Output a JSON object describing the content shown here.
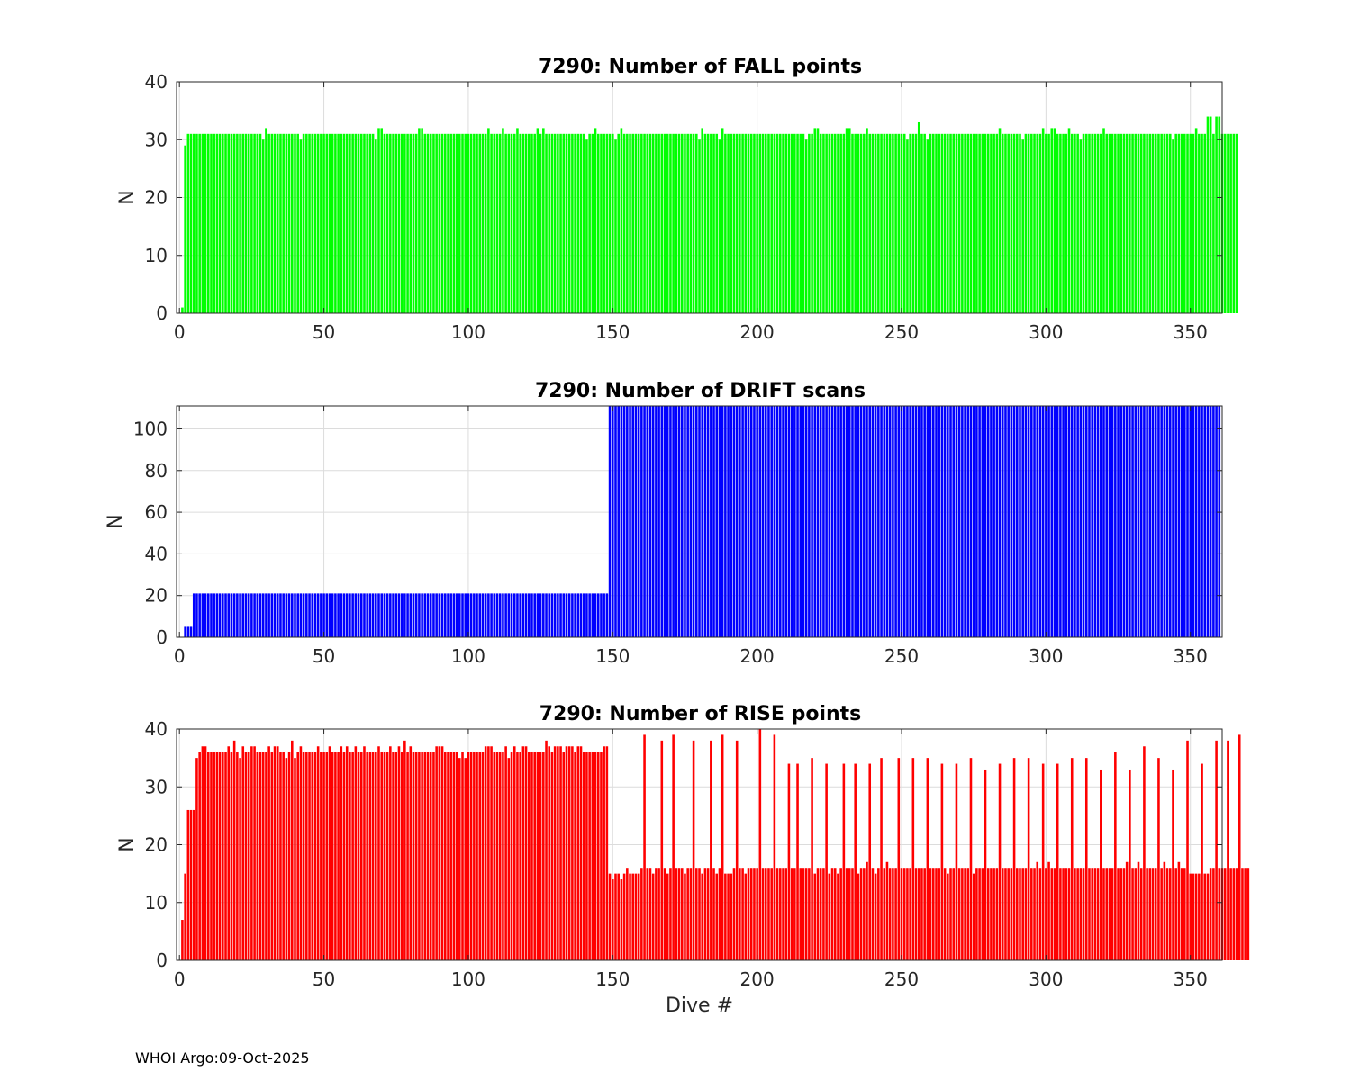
{
  "footer": "WHOI Argo:09-Oct-2025",
  "chart_data": [
    {
      "type": "bar",
      "title": "7290: Number of FALL points",
      "xlabel": "",
      "ylabel": "N",
      "xlim": [
        -1,
        361
      ],
      "ylim": [
        0,
        40
      ],
      "xticks": [
        0,
        50,
        100,
        150,
        200,
        250,
        300,
        350
      ],
      "yticks": [
        0,
        10,
        20,
        30,
        40
      ],
      "grid": true,
      "color": "#00ff00",
      "x_start": 1,
      "values": [
        1,
        29,
        31,
        31,
        31,
        31,
        31,
        31,
        31,
        31,
        31,
        31,
        31,
        31,
        31,
        31,
        31,
        31,
        31,
        31,
        31,
        31,
        31,
        31,
        31,
        31,
        31,
        31,
        30,
        32,
        31,
        31,
        31,
        31,
        31,
        31,
        31,
        31,
        31,
        31,
        31,
        30,
        31,
        31,
        31,
        31,
        31,
        31,
        31,
        31,
        31,
        31,
        31,
        31,
        31,
        31,
        31,
        31,
        31,
        31,
        31,
        31,
        31,
        31,
        31,
        31,
        31,
        30,
        32,
        32,
        31,
        31,
        31,
        31,
        31,
        31,
        31,
        31,
        31,
        31,
        31,
        31,
        32,
        32,
        31,
        31,
        31,
        31,
        31,
        31,
        31,
        31,
        31,
        31,
        31,
        31,
        31,
        31,
        31,
        31,
        31,
        31,
        31,
        31,
        31,
        31,
        32,
        31,
        31,
        31,
        31,
        32,
        31,
        31,
        31,
        31,
        32,
        31,
        31,
        31,
        31,
        31,
        31,
        32,
        31,
        32,
        31,
        31,
        31,
        31,
        31,
        31,
        31,
        31,
        31,
        31,
        31,
        31,
        31,
        31,
        30,
        31,
        31,
        32,
        31,
        31,
        31,
        31,
        31,
        31,
        30,
        31,
        32,
        31,
        31,
        31,
        31,
        31,
        31,
        31,
        31,
        31,
        31,
        31,
        31,
        31,
        31,
        31,
        31,
        31,
        31,
        31,
        31,
        31,
        31,
        31,
        31,
        31,
        31,
        30,
        32,
        31,
        31,
        31,
        31,
        31,
        30,
        32,
        31,
        31,
        31,
        31,
        31,
        31,
        31,
        31,
        31,
        31,
        31,
        31,
        31,
        31,
        31,
        31,
        31,
        31,
        31,
        31,
        31,
        31,
        31,
        31,
        31,
        31,
        31,
        31,
        30,
        31,
        31,
        32,
        32,
        31,
        31,
        31,
        31,
        31,
        31,
        31,
        31,
        31,
        32,
        32,
        31,
        31,
        31,
        31,
        31,
        32,
        31,
        31,
        31,
        31,
        31,
        31,
        31,
        31,
        31,
        31,
        31,
        31,
        31,
        30,
        31,
        31,
        31,
        33,
        31,
        31,
        30,
        31,
        31,
        31,
        31,
        31,
        31,
        31,
        31,
        31,
        31,
        31,
        31,
        31,
        31,
        31,
        31,
        31,
        31,
        31,
        31,
        31,
        31,
        31,
        31,
        32,
        31,
        31,
        31,
        31,
        31,
        31,
        31,
        30,
        31,
        31,
        31,
        31,
        31,
        31,
        32,
        31,
        31,
        32,
        32,
        31,
        31,
        31,
        31,
        32,
        31,
        31,
        31,
        30,
        31,
        31,
        31,
        31,
        31,
        31,
        31,
        32,
        31,
        31,
        31,
        31,
        31,
        31,
        31,
        31,
        31,
        31,
        31,
        31,
        31,
        31,
        31,
        31,
        31,
        31,
        31,
        31,
        31,
        31,
        31,
        30,
        31,
        31,
        31,
        31,
        31,
        31,
        31,
        32,
        31,
        31,
        31,
        34,
        34,
        31,
        34,
        34,
        31,
        31,
        31,
        31,
        31,
        31
      ]
    },
    {
      "type": "bar",
      "title": "7290: Number of DRIFT scans",
      "xlabel": "",
      "ylabel": "N",
      "xlim": [
        -1,
        361
      ],
      "ylim": [
        0,
        111
      ],
      "xticks": [
        0,
        50,
        100,
        150,
        200,
        250,
        300,
        350
      ],
      "yticks": [
        0,
        20,
        40,
        60,
        80,
        100
      ],
      "grid": true,
      "color": "#0000ff",
      "x_start": 1,
      "segments": [
        {
          "from": 1,
          "to": 1,
          "value": 0
        },
        {
          "from": 2,
          "to": 4,
          "value": 5
        },
        {
          "from": 5,
          "to": 148,
          "value": 21
        },
        {
          "from": 149,
          "to": 360,
          "value": 111
        }
      ]
    },
    {
      "type": "bar",
      "title": "7290: Number of RISE points",
      "xlabel": "Dive #",
      "ylabel": "N",
      "xlim": [
        -1,
        361
      ],
      "ylim": [
        0,
        40
      ],
      "xticks": [
        0,
        50,
        100,
        150,
        200,
        250,
        300,
        350
      ],
      "yticks": [
        0,
        10,
        20,
        30,
        40
      ],
      "grid": true,
      "color": "#ff0000",
      "x_start": 1,
      "values": [
        7,
        15,
        26,
        26,
        26,
        35,
        36,
        37,
        37,
        36,
        36,
        36,
        36,
        36,
        36,
        36,
        37,
        36,
        38,
        36,
        35,
        37,
        36,
        36,
        37,
        37,
        36,
        36,
        36,
        36,
        37,
        36,
        37,
        37,
        36,
        36,
        35,
        36,
        38,
        35,
        36,
        37,
        36,
        36,
        36,
        36,
        36,
        37,
        36,
        36,
        36,
        37,
        36,
        36,
        36,
        37,
        36,
        37,
        36,
        36,
        37,
        36,
        36,
        37,
        36,
        36,
        36,
        36,
        37,
        36,
        36,
        36,
        37,
        36,
        36,
        37,
        36,
        38,
        36,
        37,
        36,
        36,
        36,
        36,
        36,
        36,
        36,
        36,
        37,
        37,
        37,
        36,
        36,
        36,
        36,
        36,
        35,
        36,
        35,
        36,
        36,
        36,
        36,
        36,
        36,
        37,
        37,
        37,
        36,
        36,
        36,
        36,
        37,
        35,
        36,
        37,
        36,
        36,
        37,
        37,
        36,
        36,
        36,
        36,
        36,
        36,
        38,
        37,
        36,
        37,
        37,
        37,
        36,
        37,
        37,
        37,
        36,
        37,
        37,
        36,
        36,
        36,
        36,
        36,
        36,
        36,
        37,
        37,
        15,
        14,
        15,
        15,
        14,
        15,
        16,
        15,
        15,
        15,
        15,
        16,
        39,
        16,
        16,
        15,
        16,
        16,
        38,
        16,
        15,
        16,
        39,
        16,
        16,
        16,
        15,
        16,
        16,
        38,
        16,
        16,
        15,
        16,
        16,
        38,
        16,
        15,
        16,
        39,
        15,
        15,
        15,
        16,
        38,
        16,
        16,
        15,
        16,
        16,
        16,
        16,
        40,
        16,
        16,
        16,
        16,
        39,
        16,
        16,
        16,
        16,
        34,
        16,
        16,
        34,
        16,
        16,
        16,
        16,
        35,
        15,
        16,
        16,
        16,
        34,
        15,
        16,
        16,
        15,
        16,
        34,
        16,
        16,
        16,
        34,
        15,
        16,
        16,
        17,
        34,
        16,
        15,
        16,
        35,
        16,
        17,
        16,
        16,
        16,
        35,
        16,
        16,
        16,
        16,
        35,
        16,
        16,
        16,
        16,
        35,
        16,
        16,
        16,
        16,
        34,
        16,
        15,
        16,
        16,
        34,
        16,
        16,
        16,
        16,
        35,
        15,
        16,
        16,
        16,
        33,
        16,
        16,
        16,
        16,
        34,
        16,
        16,
        16,
        16,
        35,
        16,
        16,
        16,
        16,
        35,
        16,
        16,
        17,
        16,
        34,
        16,
        17,
        16,
        16,
        34,
        16,
        16,
        16,
        16,
        35,
        16,
        16,
        16,
        16,
        35,
        16,
        16,
        16,
        16,
        33,
        16,
        16,
        16,
        16,
        36,
        16,
        16,
        16,
        17,
        33,
        16,
        16,
        17,
        16,
        37,
        16,
        16,
        16,
        16,
        35,
        16,
        17,
        16,
        16,
        33,
        16,
        17,
        16,
        16,
        38,
        15,
        15,
        15,
        15,
        34,
        15,
        15,
        16,
        16,
        38,
        16,
        16,
        16,
        38,
        16,
        16,
        16,
        39,
        16,
        16,
        16
      ]
    }
  ]
}
